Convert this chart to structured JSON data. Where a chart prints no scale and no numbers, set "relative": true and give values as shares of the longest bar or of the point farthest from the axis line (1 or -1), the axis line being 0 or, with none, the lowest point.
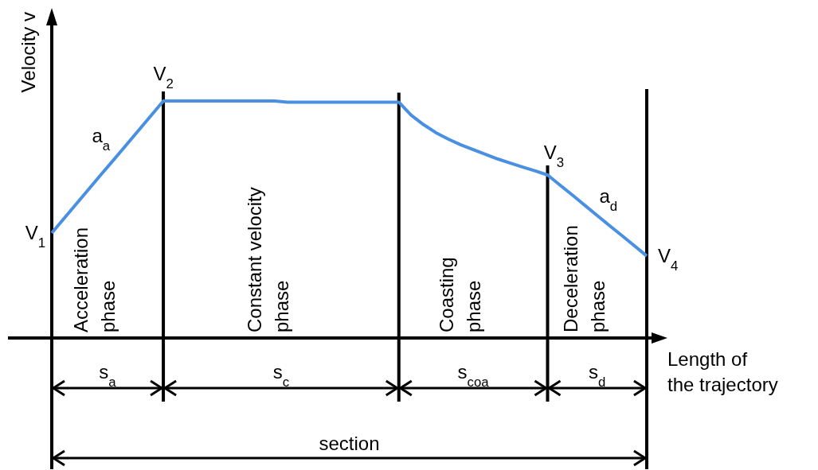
{
  "chart_data": {
    "type": "line",
    "relative": true,
    "xlabel": "Length of the trajectory",
    "ylabel": "Velocity v",
    "line_style": "solid",
    "grid": "x",
    "categories": [
      null,
      null,
      null,
      null,
      null,
      null,
      null,
      null,
      null,
      null,
      null,
      null,
      null,
      null,
      null,
      null,
      null,
      null,
      null,
      null,
      null,
      null,
      null,
      null,
      null,
      null,
      null,
      null,
      null,
      null,
      null,
      null,
      null,
      null,
      null,
      null,
      null,
      null,
      null,
      null,
      null,
      null,
      null,
      null,
      null,
      null,
      null,
      null,
      null
    ],
    "series": [
      {
        "color": "#4a90e2",
        "values": [
          0.443,
          0.505,
          0.567,
          0.629,
          0.691,
          0.752,
          0.814,
          0.876,
          0.938,
          1.0,
          1.0,
          1.0,
          1.0,
          1.0,
          1.0,
          1.0,
          1.0,
          1.0,
          1.0,
          0.995,
          0.995,
          0.995,
          0.995,
          0.995,
          0.995,
          0.995,
          0.995,
          0.995,
          0.995,
          0.94,
          0.9,
          0.866,
          0.839,
          0.815,
          0.795,
          0.775,
          0.755,
          0.738,
          0.721,
          0.705,
          0.688,
          0.645,
          0.603,
          0.56,
          0.517,
          0.474,
          0.432,
          0.389,
          0.346
        ]
      }
    ],
    "annotations": [
      "V$_{1}$",
      "V$_{2}$",
      "V$_{3}$",
      "V$_{4}$",
      "a$_{a}$",
      "a$_{d}$",
      "Acceleration phase",
      "Constant velocity phase",
      "Coasting phase",
      "Deceleration phase",
      "s$_{a}$",
      "s$_{c}$",
      "s$_{coa}$",
      "s$_{d}$",
      "section"
    ]
  }
}
